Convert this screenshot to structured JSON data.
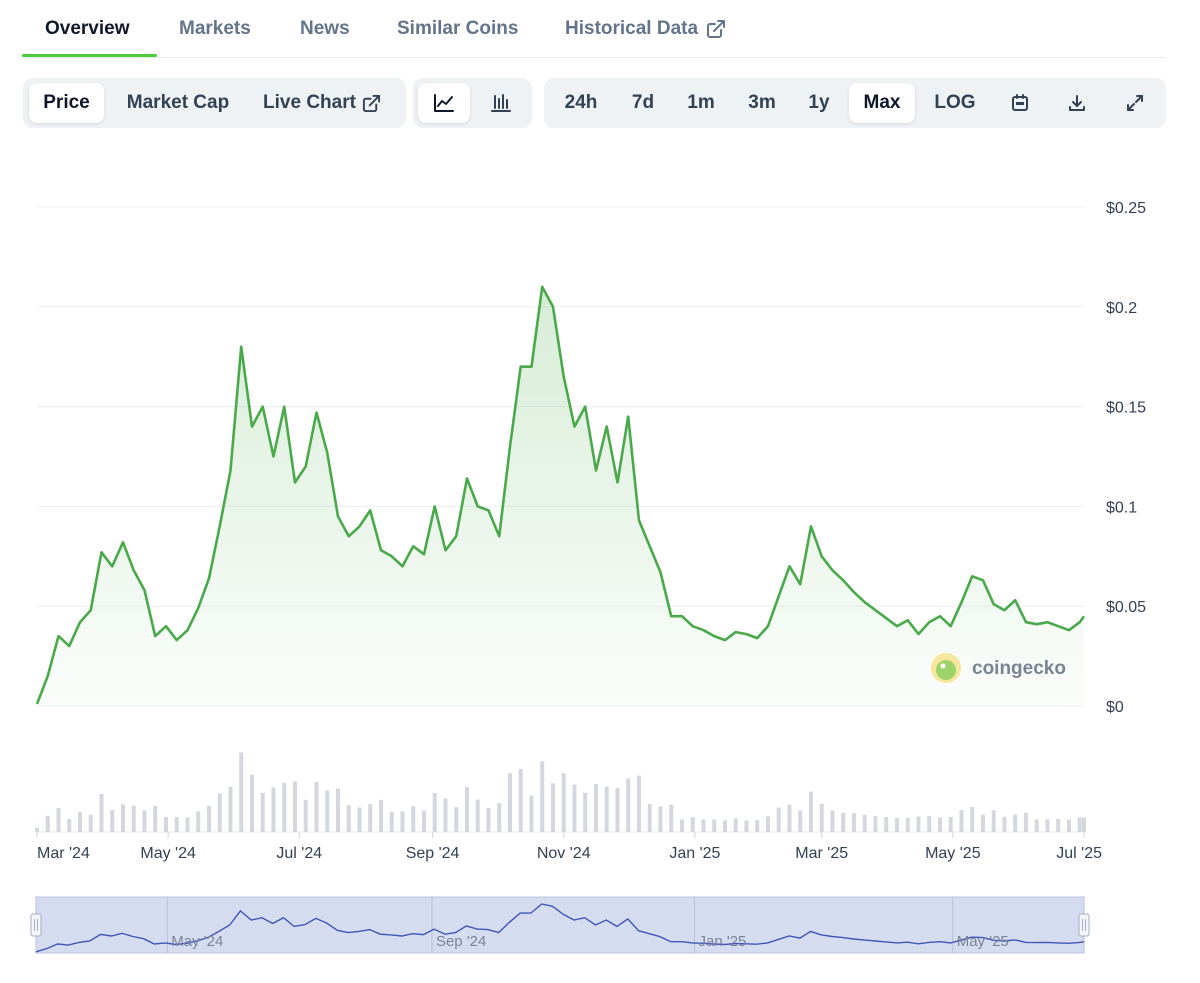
{
  "tabs": [
    {
      "label": "Overview",
      "active": true
    },
    {
      "label": "Markets",
      "active": false
    },
    {
      "label": "News",
      "active": false
    },
    {
      "label": "Similar Coins",
      "active": false
    },
    {
      "label": "Historical Data",
      "active": false,
      "icon": "external-link-icon"
    }
  ],
  "toolbar": {
    "metric_tabs": [
      {
        "label": "Price",
        "active": true
      },
      {
        "label": "Market Cap",
        "active": false
      },
      {
        "label": "Live Chart",
        "active": false,
        "icon": "external-link-icon"
      }
    ],
    "chart_style_icons": [
      "line-chart-icon",
      "candlestick-chart-icon"
    ],
    "ranges": [
      {
        "label": "24h",
        "active": false
      },
      {
        "label": "7d",
        "active": false
      },
      {
        "label": "1m",
        "active": false
      },
      {
        "label": "3m",
        "active": false
      },
      {
        "label": "1y",
        "active": false
      },
      {
        "label": "Max",
        "active": true
      },
      {
        "label": "LOG",
        "active": false
      }
    ],
    "action_icons": [
      "calendar-icon",
      "download-icon",
      "fullscreen-icon"
    ]
  },
  "watermark": {
    "text": "coingecko",
    "icon": "coingecko-logo-icon"
  },
  "colors": {
    "line": "#4aa94a",
    "volume": "#d4d8de",
    "navigator_fill": "#d6dcef",
    "navigator_line": "#3f56b8",
    "tab_accent": "#4bcc3c"
  },
  "chart_data": {
    "type": "area",
    "ylabel": "",
    "xlabel": "",
    "ylim": [
      0,
      0.25
    ],
    "y_ticks": [
      "$0",
      "$0.05",
      "$0.1",
      "$0.15",
      "$0.2",
      "$0.25"
    ],
    "y_tick_values": [
      0,
      0.05,
      0.1,
      0.15,
      0.2,
      0.25
    ],
    "x_ticks": [
      "Mar '24",
      "May '24",
      "Jul '24",
      "Sep '24",
      "Nov '24",
      "Jan '25",
      "Mar '25",
      "May '25",
      "Jul '25"
    ],
    "x_tick_dates": [
      "2024-03-01",
      "2024-05-01",
      "2024-07-01",
      "2024-09-01",
      "2024-11-01",
      "2025-01-01",
      "2025-03-01",
      "2025-05-01",
      "2025-07-01"
    ],
    "x_range": [
      "2024-03-01",
      "2025-07-01"
    ],
    "grid": true,
    "series": [
      {
        "x": [
          "2024-03-01",
          "2024-03-06",
          "2024-03-11",
          "2024-03-16",
          "2024-03-21",
          "2024-03-26",
          "2024-03-31",
          "2024-04-05",
          "2024-04-10",
          "2024-04-15",
          "2024-04-20",
          "2024-04-25",
          "2024-04-30",
          "2024-05-05",
          "2024-05-10",
          "2024-05-15",
          "2024-05-20",
          "2024-05-25",
          "2024-05-30",
          "2024-06-04",
          "2024-06-09",
          "2024-06-14",
          "2024-06-19",
          "2024-06-24",
          "2024-06-29",
          "2024-07-04",
          "2024-07-09",
          "2024-07-14",
          "2024-07-19",
          "2024-07-24",
          "2024-07-29",
          "2024-08-03",
          "2024-08-08",
          "2024-08-13",
          "2024-08-18",
          "2024-08-23",
          "2024-08-28",
          "2024-09-02",
          "2024-09-07",
          "2024-09-12",
          "2024-09-17",
          "2024-09-22",
          "2024-09-27",
          "2024-10-02",
          "2024-10-07",
          "2024-10-12",
          "2024-10-17",
          "2024-10-22",
          "2024-10-27",
          "2024-11-01",
          "2024-11-06",
          "2024-11-11",
          "2024-11-16",
          "2024-11-21",
          "2024-11-26",
          "2024-12-01",
          "2024-12-06",
          "2024-12-11",
          "2024-12-16",
          "2024-12-21",
          "2024-12-26",
          "2024-12-31",
          "2025-01-05",
          "2025-01-10",
          "2025-01-15",
          "2025-01-20",
          "2025-01-25",
          "2025-01-30",
          "2025-02-04",
          "2025-02-09",
          "2025-02-14",
          "2025-02-19",
          "2025-02-24",
          "2025-03-01",
          "2025-03-06",
          "2025-03-11",
          "2025-03-16",
          "2025-03-21",
          "2025-03-26",
          "2025-03-31",
          "2025-04-05",
          "2025-04-10",
          "2025-04-15",
          "2025-04-20",
          "2025-04-25",
          "2025-04-30",
          "2025-05-05",
          "2025-05-10",
          "2025-05-15",
          "2025-05-20",
          "2025-05-25",
          "2025-05-30",
          "2025-06-04",
          "2025-06-09",
          "2025-06-14",
          "2025-06-19",
          "2025-06-24",
          "2025-06-29",
          "2025-07-01"
        ],
        "y": [
          0.001,
          0.015,
          0.035,
          0.03,
          0.042,
          0.048,
          0.077,
          0.07,
          0.082,
          0.068,
          0.058,
          0.035,
          0.04,
          0.033,
          0.038,
          0.049,
          0.064,
          0.09,
          0.118,
          0.18,
          0.14,
          0.15,
          0.125,
          0.15,
          0.112,
          0.12,
          0.147,
          0.127,
          0.095,
          0.085,
          0.09,
          0.098,
          0.078,
          0.075,
          0.07,
          0.08,
          0.076,
          0.1,
          0.078,
          0.085,
          0.114,
          0.1,
          0.098,
          0.085,
          0.13,
          0.17,
          0.17,
          0.21,
          0.2,
          0.165,
          0.14,
          0.15,
          0.118,
          0.14,
          0.112,
          0.145,
          0.093,
          0.08,
          0.067,
          0.045,
          0.045,
          0.04,
          0.038,
          0.035,
          0.033,
          0.037,
          0.036,
          0.034,
          0.04,
          0.055,
          0.07,
          0.061,
          0.09,
          0.075,
          0.068,
          0.063,
          0.057,
          0.052,
          0.048,
          0.044,
          0.04,
          0.043,
          0.036,
          0.042,
          0.045,
          0.04,
          0.052,
          0.065,
          0.063,
          0.051,
          0.048,
          0.053,
          0.042,
          0.041,
          0.042,
          0.04,
          0.038,
          0.042,
          0.045
        ]
      }
    ],
    "navigator_labels": [
      "May '24",
      "Sep '24",
      "Jan '25",
      "May '25"
    ],
    "navigator_dates": [
      "2024-05-01",
      "2024-09-01",
      "2025-01-01",
      "2025-05-01"
    ]
  }
}
